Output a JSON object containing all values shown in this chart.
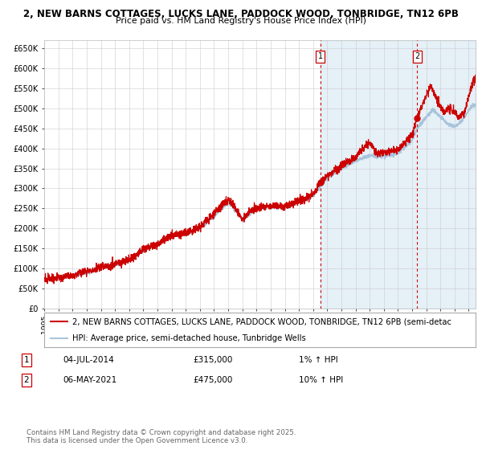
{
  "title_line1": "2, NEW BARNS COTTAGES, LUCKS LANE, PADDOCK WOOD, TONBRIDGE, TN12 6PB",
  "title_line2": "Price paid vs. HM Land Registry's House Price Index (HPI)",
  "ylabel_ticks": [
    "£0",
    "£50K",
    "£100K",
    "£150K",
    "£200K",
    "£250K",
    "£300K",
    "£350K",
    "£400K",
    "£450K",
    "£500K",
    "£550K",
    "£600K",
    "£650K"
  ],
  "ytick_values": [
    0,
    50000,
    100000,
    150000,
    200000,
    250000,
    300000,
    350000,
    400000,
    450000,
    500000,
    550000,
    600000,
    650000
  ],
  "xmin": 1995.0,
  "xmax": 2025.5,
  "ymin": 0,
  "ymax": 670000,
  "hpi_color": "#a8c4dc",
  "price_color": "#cc0000",
  "vline_color": "#cc0000",
  "background_color": "#ffffff",
  "grid_color": "#cccccc",
  "plot_bg_color": "#ffffff",
  "shaded_region_color": "#daeaf5",
  "marker1_date": 2014.5,
  "marker1_value": 315000,
  "marker1_label": "1",
  "marker2_date": 2021.35,
  "marker2_value": 475000,
  "marker2_label": "2",
  "legend_price_label": "2, NEW BARNS COTTAGES, LUCKS LANE, PADDOCK WOOD, TONBRIDGE, TN12 6PB (semi-detac",
  "legend_hpi_label": "HPI: Average price, semi-detached house, Tunbridge Wells",
  "table_row1": [
    "1",
    "04-JUL-2014",
    "£315,000",
    "1% ↑ HPI"
  ],
  "table_row2": [
    "2",
    "06-MAY-2021",
    "£475,000",
    "10% ↑ HPI"
  ],
  "footer": "Contains HM Land Registry data © Crown copyright and database right 2025.\nThis data is licensed under the Open Government Licence v3.0.",
  "title_fontsize": 8.5,
  "subtitle_fontsize": 7.8,
  "axis_fontsize": 7.0,
  "legend_fontsize": 7.2,
  "table_fontsize": 7.5,
  "footer_fontsize": 6.2
}
